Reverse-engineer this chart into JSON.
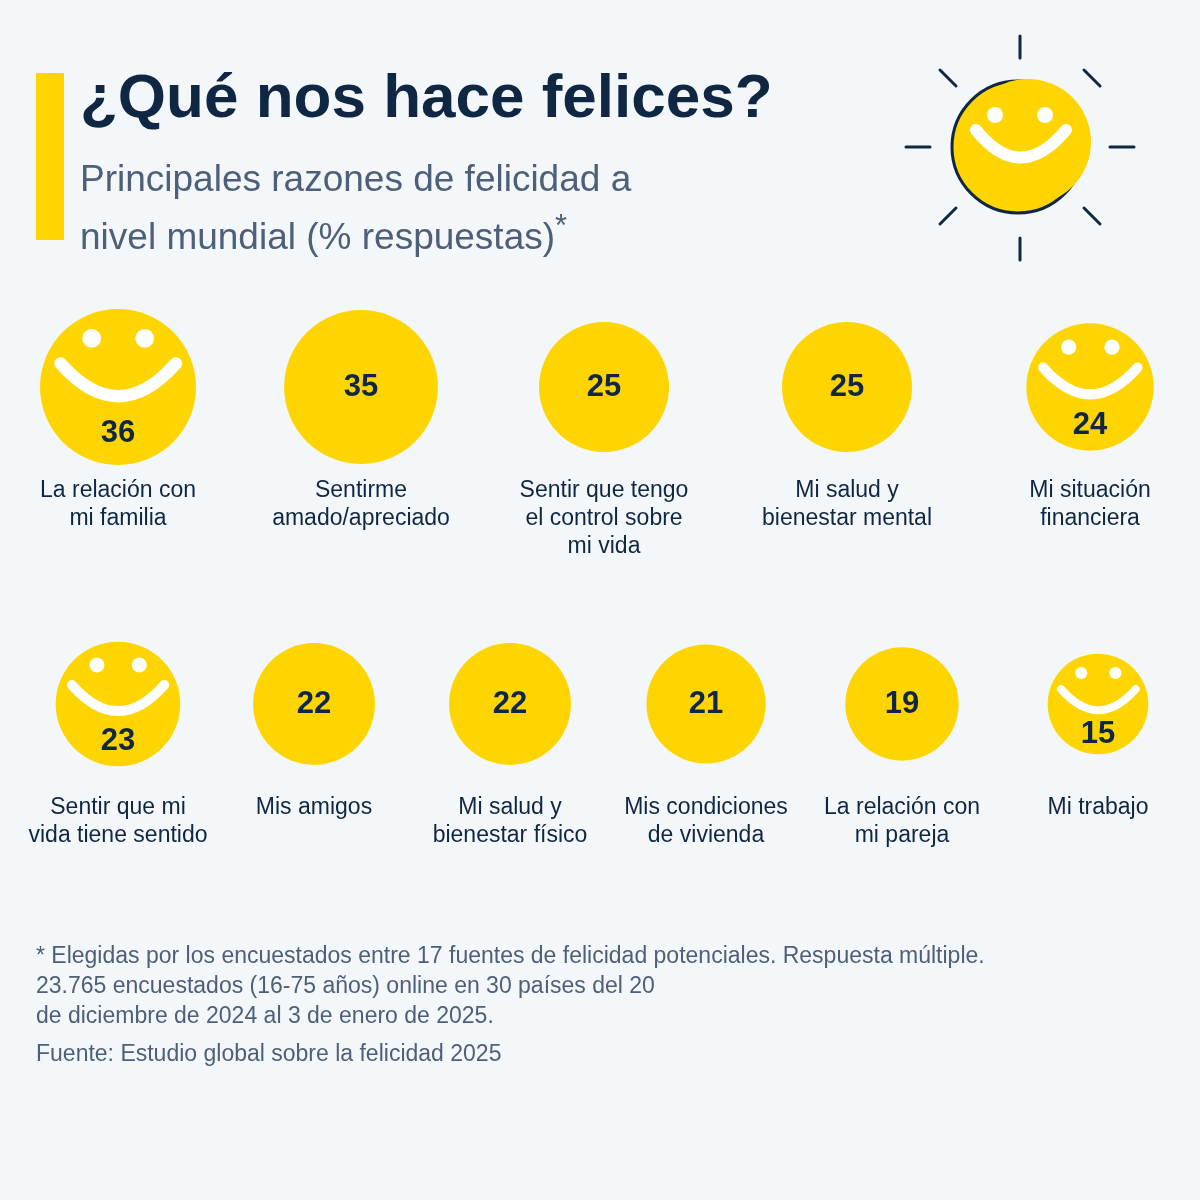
{
  "chart_data": {
    "type": "other",
    "title": "¿Qué nos hace felices?",
    "subtitle": "Principales razones de felicidad a nivel mundial (% respuestas)$^{*}$",
    "categories": [
      "La relación con mi familia",
      "Sentirme amado/apreciado",
      "Sentir que tengo el control sobre mi vida",
      "Mi salud y bienestar mental",
      "Mi situación financiera",
      "Sentir que mi vida tiene sentido",
      "Mis amigos",
      "Mi salud y bienestar físico",
      "Mis condiciones de vivienda",
      "La relación con mi pareja",
      "Mi trabajo"
    ],
    "values": [
      36,
      35,
      25,
      25,
      24,
      23,
      22,
      22,
      21,
      19,
      15
    ],
    "color": "#fed500",
    "data_labels": true,
    "annotations": [
      "* Elegidas por los encuestados entre 17 fuentes de felicidad potenciales. Respuesta múltiple.",
      "23.765 encuestados (16-75 años) online en 30 países del 20 de diciembre de 2024 al 3 de enero de 2025.",
      "Fuente: Estudio global sobre la felicidad 2025"
    ]
  }
}
